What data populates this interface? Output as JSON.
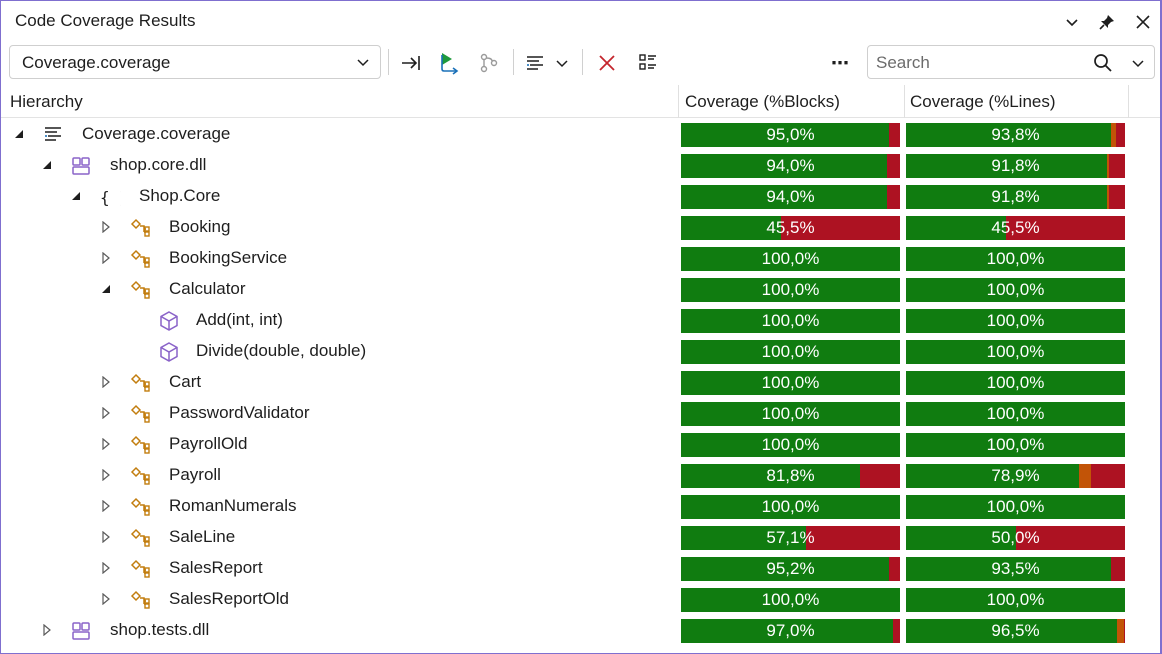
{
  "window": {
    "title": "Code Coverage Results"
  },
  "toolbar": {
    "file_selector_value": "Coverage.coverage",
    "more_label": "⋯",
    "search_placeholder": "Search"
  },
  "columns": {
    "hierarchy": "Hierarchy",
    "blocks": "Coverage (%Blocks)",
    "lines": "Coverage (%Lines)"
  },
  "colors": {
    "covered": "#107c10",
    "partial": "#c25407",
    "uncovered": "#ad1222",
    "accent": "#7f6fcf"
  },
  "rows": [
    {
      "label": "Coverage.coverage",
      "depth": 0,
      "expander": "expanded",
      "icon": "coverage-file-icon",
      "blocks": {
        "text": "95,0%",
        "covered": 0.95,
        "partial": 0.0
      },
      "lines": {
        "text": "93,8%",
        "covered": 0.938,
        "partial": 0.02
      }
    },
    {
      "label": "shop.core.dll",
      "depth": 1,
      "expander": "expanded",
      "icon": "assembly-icon",
      "blocks": {
        "text": "94,0%",
        "covered": 0.94,
        "partial": 0.0
      },
      "lines": {
        "text": "91,8%",
        "covered": 0.918,
        "partial": 0.01
      }
    },
    {
      "label": "Shop.Core",
      "depth": 2,
      "expander": "expanded",
      "icon": "namespace-icon",
      "blocks": {
        "text": "94,0%",
        "covered": 0.94,
        "partial": 0.0
      },
      "lines": {
        "text": "91,8%",
        "covered": 0.918,
        "partial": 0.01
      }
    },
    {
      "label": "Booking",
      "depth": 3,
      "expander": "collapsed",
      "icon": "class-icon",
      "blocks": {
        "text": "45,5%",
        "covered": 0.455,
        "partial": 0.0
      },
      "lines": {
        "text": "45,5%",
        "covered": 0.455,
        "partial": 0.0
      }
    },
    {
      "label": "BookingService",
      "depth": 3,
      "expander": "collapsed",
      "icon": "class-icon",
      "blocks": {
        "text": "100,0%",
        "covered": 1.0,
        "partial": 0.0
      },
      "lines": {
        "text": "100,0%",
        "covered": 1.0,
        "partial": 0.0
      }
    },
    {
      "label": "Calculator",
      "depth": 3,
      "expander": "expanded",
      "icon": "class-icon",
      "blocks": {
        "text": "100,0%",
        "covered": 1.0,
        "partial": 0.0
      },
      "lines": {
        "text": "100,0%",
        "covered": 1.0,
        "partial": 0.0
      }
    },
    {
      "label": "Add(int, int)",
      "depth": 4,
      "expander": "none",
      "icon": "method-icon",
      "blocks": {
        "text": "100,0%",
        "covered": 1.0,
        "partial": 0.0
      },
      "lines": {
        "text": "100,0%",
        "covered": 1.0,
        "partial": 0.0
      }
    },
    {
      "label": "Divide(double, double)",
      "depth": 4,
      "expander": "none",
      "icon": "method-icon",
      "blocks": {
        "text": "100,0%",
        "covered": 1.0,
        "partial": 0.0
      },
      "lines": {
        "text": "100,0%",
        "covered": 1.0,
        "partial": 0.0
      }
    },
    {
      "label": "Cart",
      "depth": 3,
      "expander": "collapsed",
      "icon": "class-icon",
      "blocks": {
        "text": "100,0%",
        "covered": 1.0,
        "partial": 0.0
      },
      "lines": {
        "text": "100,0%",
        "covered": 1.0,
        "partial": 0.0
      }
    },
    {
      "label": "PasswordValidator",
      "depth": 3,
      "expander": "collapsed",
      "icon": "class-icon",
      "blocks": {
        "text": "100,0%",
        "covered": 1.0,
        "partial": 0.0
      },
      "lines": {
        "text": "100,0%",
        "covered": 1.0,
        "partial": 0.0
      }
    },
    {
      "label": "PayrollOld",
      "depth": 3,
      "expander": "collapsed",
      "icon": "class-icon",
      "blocks": {
        "text": "100,0%",
        "covered": 1.0,
        "partial": 0.0
      },
      "lines": {
        "text": "100,0%",
        "covered": 1.0,
        "partial": 0.0
      }
    },
    {
      "label": "Payroll",
      "depth": 3,
      "expander": "collapsed",
      "icon": "class-icon",
      "blocks": {
        "text": "81,8%",
        "covered": 0.818,
        "partial": 0.0
      },
      "lines": {
        "text": "78,9%",
        "covered": 0.789,
        "partial": 0.055
      }
    },
    {
      "label": "RomanNumerals",
      "depth": 3,
      "expander": "collapsed",
      "icon": "class-icon",
      "blocks": {
        "text": "100,0%",
        "covered": 1.0,
        "partial": 0.0
      },
      "lines": {
        "text": "100,0%",
        "covered": 1.0,
        "partial": 0.0
      }
    },
    {
      "label": "SaleLine",
      "depth": 3,
      "expander": "collapsed",
      "icon": "class-icon",
      "blocks": {
        "text": "57,1%",
        "covered": 0.571,
        "partial": 0.0
      },
      "lines": {
        "text": "50,0%",
        "covered": 0.5,
        "partial": 0.0
      }
    },
    {
      "label": "SalesReport",
      "depth": 3,
      "expander": "collapsed",
      "icon": "class-icon",
      "blocks": {
        "text": "95,2%",
        "covered": 0.952,
        "partial": 0.0
      },
      "lines": {
        "text": "93,5%",
        "covered": 0.935,
        "partial": 0.0
      }
    },
    {
      "label": "SalesReportOld",
      "depth": 3,
      "expander": "collapsed",
      "icon": "class-icon",
      "blocks": {
        "text": "100,0%",
        "covered": 1.0,
        "partial": 0.0
      },
      "lines": {
        "text": "100,0%",
        "covered": 1.0,
        "partial": 0.0
      }
    },
    {
      "label": "shop.tests.dll",
      "depth": 1,
      "expander": "collapsed",
      "icon": "assembly-icon",
      "blocks": {
        "text": "97,0%",
        "covered": 0.97,
        "partial": 0.0
      },
      "lines": {
        "text": "96,5%",
        "covered": 0.965,
        "partial": 0.03
      }
    }
  ]
}
